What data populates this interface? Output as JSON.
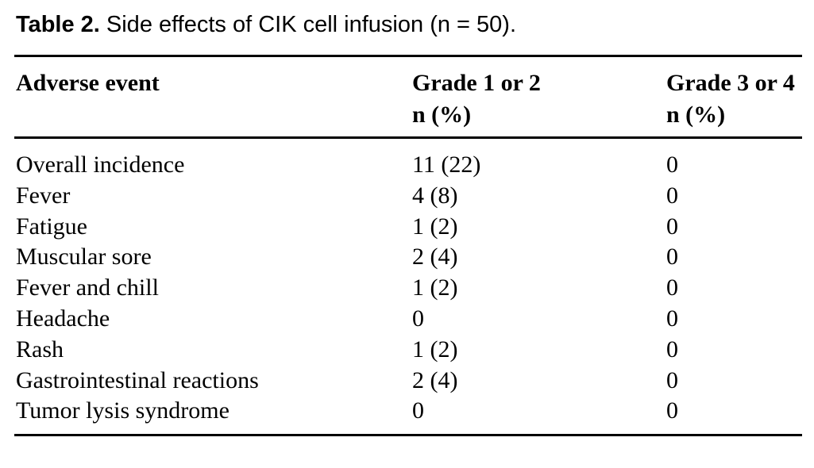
{
  "caption": {
    "label": "Table 2.",
    "text": " Side effects of CIK cell infusion (n = 50)."
  },
  "table": {
    "columns": [
      {
        "header_line1": "Adverse event",
        "header_line2": ""
      },
      {
        "header_line1": "Grade 1 or 2",
        "header_line2": "n (%)"
      },
      {
        "header_line1": "Grade 3 or 4",
        "header_line2": "n (%)"
      }
    ],
    "rows": [
      {
        "event": "Overall incidence",
        "grade12": "11 (22)",
        "grade34": "0"
      },
      {
        "event": "Fever",
        "grade12": "4 (8)",
        "grade34": "0"
      },
      {
        "event": "Fatigue",
        "grade12": "1 (2)",
        "grade34": "0"
      },
      {
        "event": "Muscular sore",
        "grade12": "2 (4)",
        "grade34": "0"
      },
      {
        "event": "Fever and chill",
        "grade12": "1 (2)",
        "grade34": "0"
      },
      {
        "event": "Headache",
        "grade12": "0",
        "grade34": "0"
      },
      {
        "event": "Rash",
        "grade12": "1 (2)",
        "grade34": "0"
      },
      {
        "event": "Gastrointestinal reactions",
        "grade12": "2 (4)",
        "grade34": "0"
      },
      {
        "event": "Tumor lysis syndrome",
        "grade12": "0",
        "grade34": "0"
      }
    ]
  },
  "colors": {
    "text": "#000000",
    "background": "#ffffff",
    "rule": "#000000"
  }
}
